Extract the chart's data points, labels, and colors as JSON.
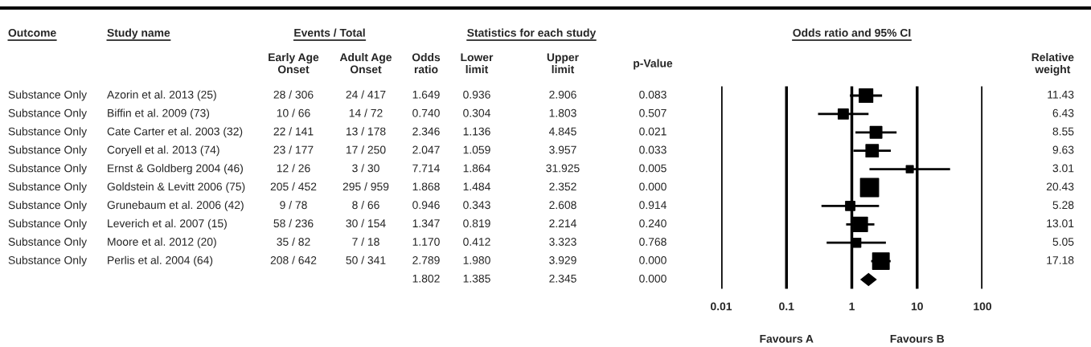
{
  "chart_data": [
    {
      "type": "other",
      "title": "Events / Total",
      "subtitle": "Statistics for each study",
      "categories": [
        "Outcome",
        "Study name",
        "Early Age\nOnset",
        "Adult Age\nOnset",
        "Odds\nratio",
        "Lower\nlimit",
        "Upper\nlimit",
        "p-Value",
        "Relative\nweight"
      ],
      "annotations": [
        "Substance Only",
        "Azorin et al. 2013 (25)",
        "28 / 306",
        "24 / 417",
        "1.649",
        "0.936",
        "2.906",
        "0.083",
        "11.43",
        "Substance Only",
        "Biffin et al. 2009 (73)",
        "10 / 66",
        "14 / 72",
        "0.740",
        "0.304",
        "1.803",
        "0.507",
        "6.43",
        "Substance Only",
        "Cate Carter et al. 2003 (32)",
        "22 / 141",
        "13 / 178",
        "2.346",
        "1.136",
        "4.845",
        "0.021",
        "8.55",
        "Substance Only",
        "Coryell et al. 2013 (74)",
        "23 / 177",
        "17 / 250",
        "2.047",
        "1.059",
        "3.957",
        "0.033",
        "9.63",
        "Substance Only",
        "Ernst & Goldberg 2004 (46)",
        "12 / 26",
        "3 / 30",
        "7.714",
        "1.864",
        "31.925",
        "0.005",
        "3.01",
        "Substance Only",
        "Goldstein & Levitt 2006 (75)",
        "205 / 452",
        "295 / 959",
        "1.868",
        "1.484",
        "2.352",
        "0.000",
        "20.43",
        "Substance Only",
        "Grunebaum et al. 2006 (42)",
        "9 / 78",
        "8 / 66",
        "0.946",
        "0.343",
        "2.608",
        "0.914",
        "5.28",
        "Substance Only",
        "Leverich et al. 2007 (15)",
        "58 / 236",
        "30 / 154",
        "1.347",
        "0.819",
        "2.214",
        "0.240",
        "13.01",
        "Substance Only",
        "Moore et al. 2012 (20)",
        "35 / 82",
        "7 / 18",
        "1.170",
        "0.412",
        "3.323",
        "0.768",
        "5.05",
        "Substance Only",
        "Perlis et al. 2004 (64)",
        "208 / 642",
        "50 / 341",
        "2.789",
        "1.980",
        "3.929",
        "0.000",
        "17.18",
        "1.802",
        "1.385",
        "2.345",
        "0.000"
      ]
    },
    {
      "type": "bubble",
      "title": "Odds ratio and 95% CI",
      "orientation": "horizontal",
      "log": "x",
      "categories": [
        null,
        null,
        null,
        null,
        null,
        null,
        null,
        null,
        null,
        null,
        null
      ],
      "xlim": [
        0.01,
        100
      ],
      "xticks": [
        0.01,
        0.1,
        1,
        10,
        100
      ],
      "grid": "x",
      "series": [
        {
          "color": "#000000",
          "marker": "square",
          "values": [
            1.649,
            0.74,
            2.346,
            2.047,
            7.714,
            1.868,
            0.946,
            1.347,
            1.17,
            2.789,
            null
          ],
          "errors": [
            [
              0.936,
              2.906
            ],
            [
              0.304,
              1.803
            ],
            [
              1.136,
              4.845
            ],
            [
              1.059,
              3.957
            ],
            [
              1.864,
              31.925
            ],
            null,
            [
              0.343,
              2.608
            ],
            [
              0.819,
              2.214
            ],
            [
              0.412,
              3.323
            ],
            [
              1.98,
              3.929
            ],
            null
          ],
          "sizes": [
            0.56,
            0.31,
            0.42,
            0.47,
            0.15,
            1,
            0.26,
            0.64,
            0.25,
            0.84,
            null
          ]
        },
        {
          "color": "#000000",
          "marker": "diamond",
          "values": [
            null,
            null,
            null,
            null,
            null,
            null,
            null,
            null,
            null,
            null,
            1.802
          ],
          "errors": [
            null,
            null,
            null,
            null,
            null,
            null,
            null,
            null,
            null,
            null,
            [
              1.385,
              2.345
            ]
          ]
        }
      ],
      "annotations": [
        "Favours A",
        "Favours B"
      ]
    }
  ]
}
